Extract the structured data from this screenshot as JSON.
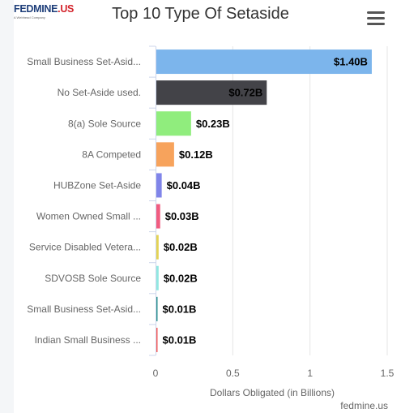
{
  "logo": {
    "text_main": "FEDMINE",
    "text_dot": ".US",
    "tagline": "A Webhead Company"
  },
  "header": {
    "title": "Top 10 Type Of Setaside"
  },
  "menu": {
    "icon": "hamburger-menu-icon"
  },
  "credit": {
    "text": "fedmine.us"
  },
  "chart_data": {
    "type": "bar",
    "orientation": "horizontal",
    "title": "Top 10 Type Of Setaside",
    "xlabel": "Dollars Obligated (in Billions)",
    "ylabel": "",
    "xlim": [
      0,
      1.5
    ],
    "xticks": [
      0,
      0.5,
      1,
      1.5
    ],
    "xtick_labels": [
      "0",
      "0.5",
      "1",
      "1.5"
    ],
    "categories": [
      "Small Business Set-Asid...",
      "No Set-Aside used.",
      "8(a) Sole Source",
      "8A Competed",
      "HUBZone Set-Aside",
      "Women Owned Small ...",
      "Service Disabled Vetera...",
      "SDVOSB Sole Source",
      "Small Business Set-Asid...",
      "Indian Small Business ..."
    ],
    "values": [
      1.4,
      0.72,
      0.23,
      0.12,
      0.04,
      0.03,
      0.02,
      0.02,
      0.01,
      0.01
    ],
    "data_labels": [
      "$1.40B",
      "$0.72B",
      "$0.23B",
      "$0.12B",
      "$0.04B",
      "$0.03B",
      "$0.02B",
      "$0.02B",
      "$0.01B",
      "$0.01B"
    ],
    "colors": [
      "#7cb5ec",
      "#434348",
      "#90ed7d",
      "#f7a35c",
      "#8085e9",
      "#f15c80",
      "#e4d354",
      "#91e8e1",
      "#2b908f",
      "#f45b5b"
    ],
    "grid": true,
    "legend": "none"
  }
}
